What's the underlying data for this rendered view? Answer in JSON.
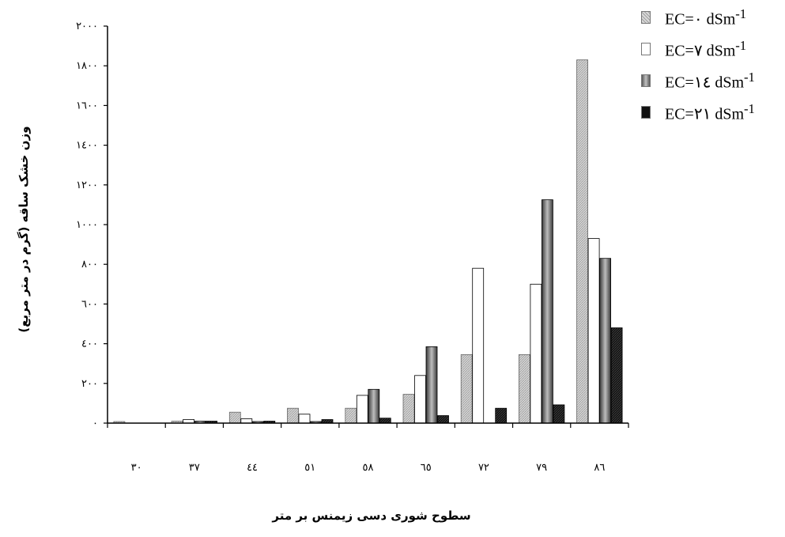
{
  "chart_data": {
    "type": "bar",
    "ylabel": "وزن خشک ساقه (گرم در متر مربع)",
    "xlabel": "سطوح شوری دسی زیمنس بر متر",
    "categories": [
      "۳۰",
      "۳۷",
      "٤٤",
      "٥١",
      "٥۸",
      "٦٥",
      "۷۲",
      "۷۹",
      "۸٦"
    ],
    "ylim": [
      0,
      2000
    ],
    "yticks": [
      0,
      200,
      400,
      600,
      800,
      1000,
      1200,
      1400,
      1600,
      1800,
      2000
    ],
    "ytick_labels": [
      "۰",
      "۲۰۰",
      "٤۰۰",
      "٦۰۰",
      "۸۰۰",
      "۱۰۰۰",
      "۱۲۰۰",
      "۱٤۰۰",
      "۱٦۰۰",
      "۱۸۰۰",
      "۲۰۰۰"
    ],
    "grid": false,
    "legend_position": "top-right",
    "series": [
      {
        "name": "EC=۰ dSm-1",
        "legend_text": "EC=۰  dSm",
        "legend_sup": "-1",
        "color": "#c8c8c8",
        "values": [
          8,
          10,
          55,
          75,
          75,
          145,
          345,
          345,
          1830
        ]
      },
      {
        "name": "EC=۷ dSm-1",
        "legend_text": "EC=۷  dSm",
        "legend_sup": "-1",
        "color": "#ffffff",
        "values": [
          0,
          18,
          22,
          45,
          140,
          240,
          780,
          700,
          930
        ]
      },
      {
        "name": "EC=۱٤ dSm-1",
        "legend_text": "EC=۱٤  dSm",
        "legend_sup": "-1",
        "color": "#8a8a8a",
        "values": [
          0,
          10,
          8,
          8,
          170,
          385,
          0,
          1125,
          830
        ]
      },
      {
        "name": "EC=۲۱ dSm-1",
        "legend_text": "EC=۲۱  dSm",
        "legend_sup": "-1",
        "color": "#111111",
        "values": [
          0,
          10,
          10,
          18,
          25,
          38,
          75,
          92,
          480
        ]
      }
    ]
  }
}
